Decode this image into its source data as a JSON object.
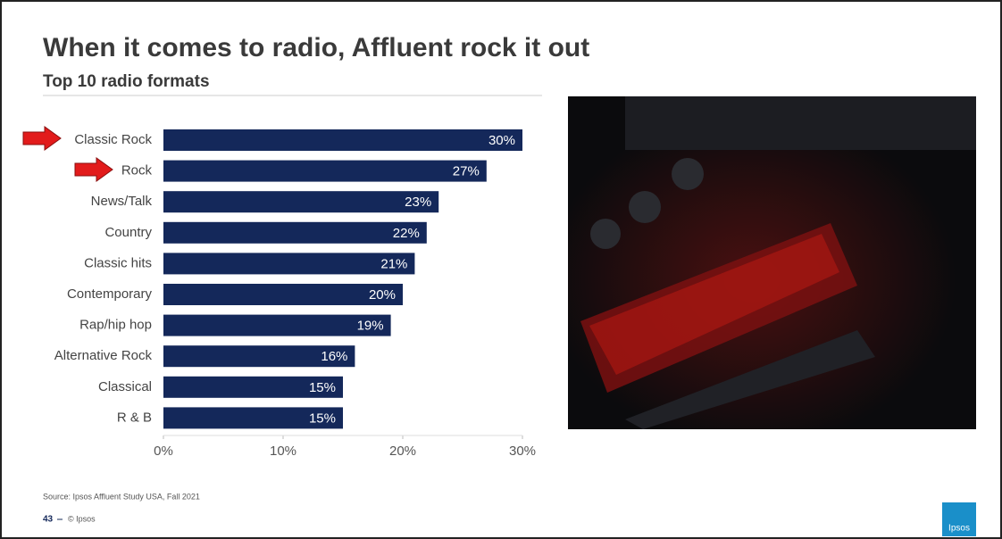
{
  "chart_data": {
    "type": "bar",
    "orientation": "horizontal",
    "title": "When it comes to radio, Affluent rock it out",
    "subtitle": "Top 10 radio formats",
    "categories": [
      "Classic Rock",
      "Rock",
      "News/Talk",
      "Country",
      "Classic hits",
      "Contemporary",
      "Rap/hip hop",
      "Alternative Rock",
      "Classical",
      "R & B"
    ],
    "values": [
      30,
      27,
      23,
      22,
      21,
      20,
      19,
      16,
      15,
      15
    ],
    "value_labels": [
      "30%",
      "27%",
      "23%",
      "22%",
      "21%",
      "20%",
      "19%",
      "16%",
      "15%",
      "15%"
    ],
    "color": "#14285a",
    "xlim": [
      0,
      30
    ],
    "xticks": [
      {
        "value": 0,
        "label": "0%"
      },
      {
        "value": 10,
        "label": "10%"
      },
      {
        "value": 20,
        "label": "20%"
      },
      {
        "value": 30,
        "label": "30%"
      }
    ],
    "grid": false,
    "highlighted": [
      "Classic Rock",
      "Rock"
    ]
  },
  "source": "Source: Ipsos Affluent Study USA, Fall 2021",
  "footer": {
    "page_number": "43",
    "copyright": "© Ipsos"
  },
  "logo": "Ipsos"
}
